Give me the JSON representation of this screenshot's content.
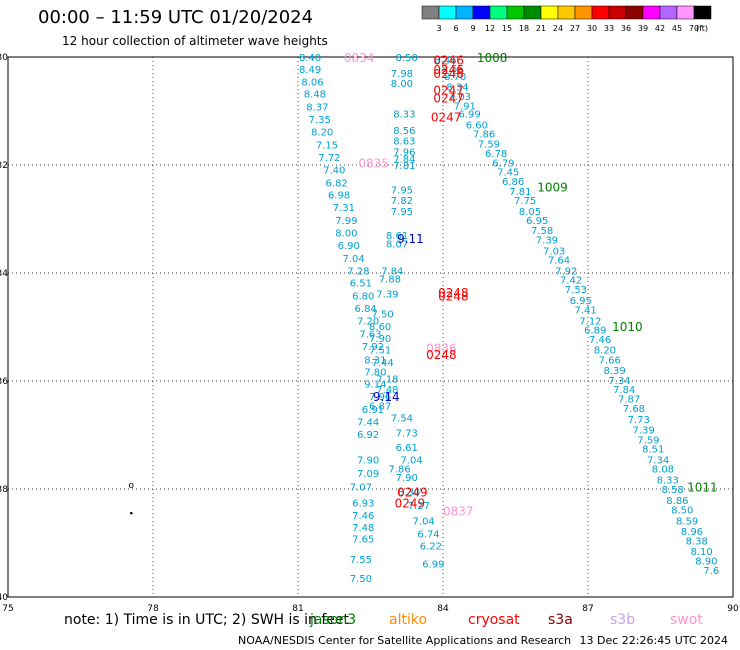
{
  "header": {
    "title": "00:00 – 11:59 UTC 01/20/2024",
    "subtitle": "12 hour collection of altimeter wave heights"
  },
  "colorbar": {
    "labels": [
      "3",
      "6",
      "9",
      "12",
      "15",
      "18",
      "21",
      "24",
      "27",
      "30",
      "33",
      "36",
      "39",
      "42",
      "45",
      "70"
    ],
    "unit": "(ft)",
    "colors": [
      "#808080",
      "#00ffff",
      "#00b4ff",
      "#0000ff",
      "#00ff80",
      "#00c800",
      "#008c00",
      "#ffff00",
      "#ffc800",
      "#ff9600",
      "#ff0000",
      "#c80000",
      "#8c0000",
      "#ff00ff",
      "#b464ff",
      "#ff96ff",
      "#000000"
    ]
  },
  "footer": {
    "note": "note:  1) Time is in UTC;  2) SWH is in feet",
    "credit": "NOAA/NESDIS Center for Satellite Applications and Research",
    "timestamp": "13 Dec 22:26:45 UTC 2024",
    "missions": [
      {
        "name": "jason3",
        "color": "#008000",
        "left": 310
      },
      {
        "name": "altiko",
        "color": "#ff8c00",
        "left": 389
      },
      {
        "name": "cryosat",
        "color": "#ff0000",
        "left": 468
      },
      {
        "name": "s3a",
        "color": "#8b0000",
        "left": 548
      },
      {
        "name": "s3b",
        "color": "#c8a2e6",
        "left": 610
      },
      {
        "name": "swot",
        "color": "#ff96d2",
        "left": 670
      }
    ]
  },
  "chart_data": {
    "type": "scatter",
    "title": "00:00 – 11:59 UTC 01/20/2024",
    "subtitle": "12 hour collection of altimeter wave heights",
    "xlabel": "",
    "ylabel": "",
    "xlim": [
      75,
      90
    ],
    "ylim": [
      -40,
      -30
    ],
    "x_ticks": [
      "75",
      "78",
      "81",
      "84",
      "87",
      "90"
    ],
    "y_ticks": [
      "-30",
      "-32",
      "-34",
      "-36",
      "-38",
      "-40"
    ],
    "grid": true,
    "series": [
      {
        "name": "jason3",
        "color": "#00a0d0",
        "points": [
          [
            84.05,
            -30.05,
            "8.46"
          ],
          [
            84.2,
            -30.2,
            "8.55"
          ],
          [
            84.25,
            -30.35,
            "8.70"
          ],
          [
            84.3,
            -30.55,
            "8.34"
          ],
          [
            84.35,
            -30.72,
            "7.03"
          ],
          [
            84.45,
            -30.9,
            "7.91"
          ],
          [
            84.55,
            -31.05,
            "6.99"
          ],
          [
            84.7,
            -31.25,
            "6.60"
          ],
          [
            84.85,
            -31.42,
            "7.86"
          ],
          [
            84.95,
            -31.6,
            "7.59"
          ],
          [
            85.1,
            -31.78,
            "6.78"
          ],
          [
            85.25,
            -31.95,
            "6.79"
          ],
          [
            85.35,
            -32.12,
            "7.45"
          ],
          [
            85.45,
            -32.3,
            "6.86"
          ],
          [
            85.6,
            -32.48,
            "7.81"
          ],
          [
            85.7,
            -32.65,
            "7.75"
          ],
          [
            85.8,
            -32.85,
            "8.05"
          ],
          [
            85.95,
            -33.02,
            "6.95"
          ],
          [
            86.05,
            -33.2,
            "7.58"
          ],
          [
            86.15,
            -33.38,
            "7.39"
          ],
          [
            86.3,
            -33.58,
            "7.03"
          ],
          [
            86.4,
            -33.75,
            "7.64"
          ],
          [
            86.55,
            -33.95,
            "7.92"
          ],
          [
            86.65,
            -34.12,
            "7.42"
          ],
          [
            86.75,
            -34.3,
            "7.53"
          ],
          [
            86.85,
            -34.5,
            "6.95"
          ],
          [
            86.95,
            -34.68,
            "7.41"
          ],
          [
            87.05,
            -34.88,
            "7.12"
          ],
          [
            87.15,
            -35.05,
            "6.89"
          ],
          [
            87.25,
            -35.22,
            "7.46"
          ],
          [
            87.35,
            -35.42,
            "8.20"
          ],
          [
            87.45,
            -35.6,
            "7.66"
          ],
          [
            87.55,
            -35.8,
            "8.39"
          ],
          [
            87.65,
            -35.98,
            "7.34"
          ],
          [
            87.75,
            -36.15,
            "7.84"
          ],
          [
            87.85,
            -36.32,
            "7.87"
          ],
          [
            87.95,
            -36.5,
            "7.68"
          ],
          [
            88.05,
            -36.7,
            "7.73"
          ],
          [
            88.15,
            -36.9,
            "7.39"
          ],
          [
            88.25,
            -37.08,
            "7.59"
          ],
          [
            88.35,
            -37.25,
            "8.51"
          ],
          [
            88.45,
            -37.45,
            "7.34"
          ],
          [
            88.55,
            -37.62,
            "8.08"
          ],
          [
            88.65,
            -37.82,
            "8.33"
          ],
          [
            88.75,
            -38.0,
            "8.58"
          ],
          [
            88.85,
            -38.2,
            "8.86"
          ],
          [
            88.95,
            -38.38,
            "8.50"
          ],
          [
            89.05,
            -38.58,
            "8.59"
          ],
          [
            89.15,
            -38.78,
            "8.96"
          ],
          [
            89.25,
            -38.95,
            "8.38"
          ],
          [
            89.35,
            -39.15,
            "8.10"
          ],
          [
            89.45,
            -39.32,
            "8.90"
          ],
          [
            89.55,
            -39.5,
            "7.6"
          ]
        ]
      },
      {
        "name": "track-west",
        "color": "#00a0d0",
        "points": [
          [
            81.25,
            -30.0,
            "8.40"
          ],
          [
            81.25,
            -30.22,
            "8.49"
          ],
          [
            81.3,
            -30.45,
            "8.06"
          ],
          [
            81.35,
            -30.68,
            "8.48"
          ],
          [
            81.4,
            -30.92,
            "8.37"
          ],
          [
            81.45,
            -31.15,
            "7.35"
          ],
          [
            81.5,
            -31.38,
            "8.20"
          ],
          [
            81.6,
            -31.62,
            "7.15"
          ],
          [
            81.65,
            -31.85,
            "7.72"
          ],
          [
            81.75,
            -32.08,
            "7.40"
          ],
          [
            81.8,
            -32.32,
            "6.82"
          ],
          [
            81.85,
            -32.55,
            "6.98"
          ],
          [
            81.95,
            -32.78,
            "7.31"
          ],
          [
            82.0,
            -33.02,
            "7.99"
          ],
          [
            82.0,
            -33.25,
            "8.00"
          ],
          [
            82.05,
            -33.48,
            "6.90"
          ],
          [
            82.15,
            -33.72,
            "7.04"
          ],
          [
            82.25,
            -33.95,
            "7.28"
          ],
          [
            82.3,
            -34.18,
            "6.51"
          ],
          [
            82.35,
            -34.42,
            "6.80"
          ],
          [
            82.4,
            -34.65,
            "6.84"
          ],
          [
            82.45,
            -34.88,
            "7.20"
          ],
          [
            82.5,
            -35.12,
            "7.63"
          ],
          [
            82.55,
            -35.35,
            "7.92"
          ],
          [
            82.6,
            -35.6,
            "8.31"
          ],
          [
            82.6,
            -35.82,
            "7.80"
          ],
          [
            82.6,
            -36.05,
            "9.14"
          ],
          [
            82.7,
            -36.28,
            "7.96"
          ],
          [
            82.55,
            -36.52,
            "6.91"
          ],
          [
            82.45,
            -36.75,
            "7.44"
          ],
          [
            82.45,
            -36.98,
            "6.92"
          ],
          [
            82.45,
            -37.45,
            "7.90"
          ],
          [
            82.45,
            -37.7,
            "7.09"
          ],
          [
            82.3,
            -37.95,
            "7.07"
          ],
          [
            82.35,
            -38.25,
            "6.93"
          ],
          [
            82.35,
            -38.48,
            "7.46"
          ],
          [
            82.35,
            -38.7,
            "7.48"
          ],
          [
            82.35,
            -38.92,
            "7.65"
          ],
          [
            82.3,
            -39.3,
            "7.55"
          ],
          [
            82.3,
            -39.65,
            "7.50"
          ]
        ]
      },
      {
        "name": "track-middle",
        "color": "#00a0d0",
        "points": [
          [
            83.25,
            -30.0,
            "8.50"
          ],
          [
            83.15,
            -30.3,
            "7.98"
          ],
          [
            83.15,
            -30.48,
            "8.00"
          ],
          [
            83.2,
            -31.05,
            "8.33"
          ],
          [
            83.2,
            -31.35,
            "8.56"
          ],
          [
            83.2,
            -31.55,
            "8.63"
          ],
          [
            83.2,
            -31.75,
            "7.96"
          ],
          [
            83.2,
            -31.88,
            "7.84"
          ],
          [
            83.2,
            -32.0,
            "7.81"
          ],
          [
            83.15,
            -32.45,
            "7.95"
          ],
          [
            83.15,
            -32.65,
            "7.82"
          ],
          [
            83.15,
            -32.85,
            "7.95"
          ],
          [
            83.05,
            -33.3,
            "8.61"
          ],
          [
            83.05,
            -33.45,
            "8.07"
          ],
          [
            82.95,
            -33.95,
            "7.84"
          ],
          [
            82.9,
            -34.1,
            "7.88"
          ],
          [
            82.85,
            -34.38,
            "7.39"
          ],
          [
            82.75,
            -34.75,
            "7.50"
          ],
          [
            82.7,
            -34.98,
            "8.60"
          ],
          [
            82.7,
            -35.2,
            "7.90"
          ],
          [
            82.7,
            -35.42,
            "7.51"
          ],
          [
            82.75,
            -35.65,
            "7.44"
          ],
          [
            82.85,
            -35.95,
            "7.18"
          ],
          [
            82.85,
            -36.15,
            "7.48"
          ],
          [
            82.7,
            -36.45,
            "6.87"
          ],
          [
            83.15,
            -36.68,
            "7.54"
          ],
          [
            83.25,
            -36.95,
            "7.73"
          ],
          [
            83.25,
            -37.22,
            "6.61"
          ],
          [
            83.35,
            -37.45,
            "7.04"
          ],
          [
            83.1,
            -37.62,
            "7.86"
          ],
          [
            83.25,
            -37.78,
            "7.90"
          ],
          [
            83.3,
            -38.05,
            "8.30"
          ],
          [
            83.5,
            -38.3,
            "7.27"
          ],
          [
            83.6,
            -38.58,
            "7.04"
          ],
          [
            83.7,
            -38.82,
            "6.74"
          ],
          [
            83.75,
            -39.05,
            "6.22"
          ],
          [
            83.8,
            -39.38,
            "6.99"
          ]
        ]
      }
    ],
    "cycle_labels": [
      {
        "x": 81.95,
        "y": -30.0,
        "text": "0834",
        "color": "#ff96d2"
      },
      {
        "x": 84.7,
        "y": -30.0,
        "text": "1008",
        "color": "#008000"
      },
      {
        "x": 83.8,
        "y": -30.05,
        "text": "0246",
        "color": "#ff0000"
      },
      {
        "x": 83.8,
        "y": -30.22,
        "text": "0246",
        "color": "#ff0000"
      },
      {
        "x": 83.8,
        "y": -30.3,
        "text": "0246",
        "color": "#ff0000"
      },
      {
        "x": 83.8,
        "y": -30.6,
        "text": "0247",
        "color": "#ff0000"
      },
      {
        "x": 83.8,
        "y": -30.75,
        "text": "0247",
        "color": "#ff0000"
      },
      {
        "x": 83.75,
        "y": -31.1,
        "text": "0247",
        "color": "#ff0000"
      },
      {
        "x": 82.25,
        "y": -31.95,
        "text": "0835",
        "color": "#ff96d2"
      },
      {
        "x": 85.95,
        "y": -32.4,
        "text": "1009",
        "color": "#008000"
      },
      {
        "x": 83.05,
        "y": -33.35,
        "text": "9.11",
        "color": "#0000c8"
      },
      {
        "x": 83.9,
        "y": -34.35,
        "text": "0248",
        "color": "#ff0000"
      },
      {
        "x": 83.9,
        "y": -34.42,
        "text": "0248",
        "color": "#ff0000"
      },
      {
        "x": 87.5,
        "y": -34.98,
        "text": "1010",
        "color": "#008000"
      },
      {
        "x": 83.65,
        "y": -35.38,
        "text": "0836",
        "color": "#ff96d2"
      },
      {
        "x": 83.65,
        "y": -35.5,
        "text": "0248",
        "color": "#ff0000"
      },
      {
        "x": 82.55,
        "y": -36.28,
        "text": "9.14",
        "color": "#0000c8"
      },
      {
        "x": 89.05,
        "y": -37.95,
        "text": "1011",
        "color": "#008000"
      },
      {
        "x": 83.05,
        "y": -38.05,
        "text": "0249",
        "color": "#ff0000"
      },
      {
        "x": 83.0,
        "y": -38.25,
        "text": "0249",
        "color": "#ff0000"
      },
      {
        "x": 84.0,
        "y": -38.4,
        "text": "0837",
        "color": "#ff96d2"
      }
    ],
    "markers": [
      {
        "x": 77.55,
        "y": -37.93,
        "text": "o"
      },
      {
        "x": 77.55,
        "y": -38.45,
        "text": "•"
      }
    ]
  }
}
